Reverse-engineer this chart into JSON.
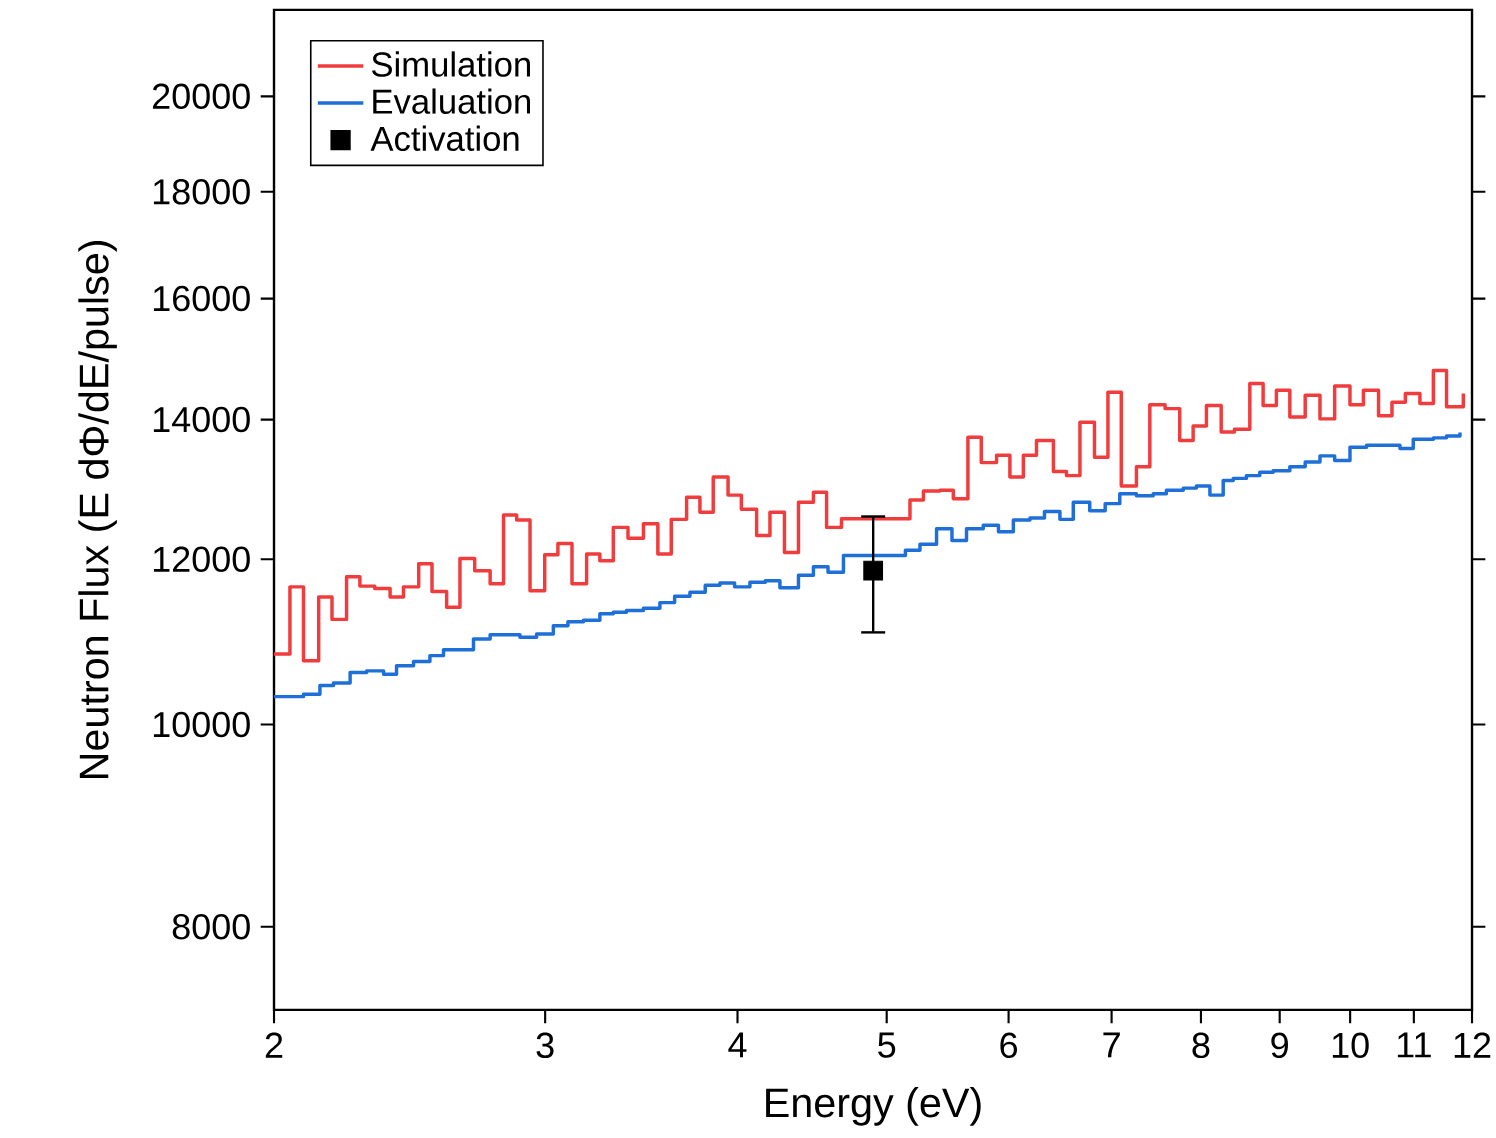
{
  "chart_data": {
    "type": "step",
    "xlabel": "Energy (eV)",
    "ylabel": "Neutron Flux (E dΦ/dE/pulse)",
    "log": "xy",
    "legend": "top left",
    "grid": false,
    "xlim": [
      2,
      12
    ],
    "xticks": [
      2,
      3,
      4,
      5,
      6,
      7,
      8,
      9,
      10,
      11,
      12
    ],
    "ylim": [
      7300,
      22000
    ],
    "yticks": [
      8000,
      10000,
      12000,
      14000,
      16000,
      18000,
      20000
    ],
    "series": [
      {
        "name": "Simulation",
        "color": "#f03c3c",
        "x": [
          2.0,
          2.048,
          2.09,
          2.138,
          2.181,
          2.229,
          2.274,
          2.325,
          2.379,
          2.427,
          2.483,
          2.533,
          2.589,
          2.641,
          2.7,
          2.763,
          2.819,
          2.875,
          2.933,
          2.998,
          3.058,
          3.123,
          3.192,
          3.256,
          3.322,
          3.396,
          3.475,
          3.551,
          3.623,
          3.707,
          3.782,
          3.858,
          3.944,
          4.023,
          4.116,
          4.199,
          4.291,
          4.382,
          4.481,
          4.57,
          4.673,
          5.177,
          5.282,
          5.415,
          5.524,
          5.646,
          5.76,
          5.893,
          6.012,
          6.134,
          6.256,
          6.416,
          6.543,
          6.676,
          6.823,
          6.961,
          7.102,
          7.265,
          7.412,
          7.584,
          7.751,
          7.908,
          8.066,
          8.246,
          8.411,
          8.607,
          8.78,
          8.956,
          9.138,
          9.35,
          9.559,
          9.771,
          9.998,
          10.2,
          10.434,
          10.646,
          10.861,
          11.1,
          11.326,
          11.551,
          11.845
        ],
        "values": [
          10810,
          11640,
          10730,
          11510,
          11230,
          11770,
          11650,
          11620,
          11510,
          11640,
          11940,
          11580,
          11380,
          12010,
          11850,
          11680,
          12600,
          12530,
          11590,
          12060,
          12210,
          11680,
          12070,
          11980,
          12430,
          12280,
          12480,
          12070,
          12540,
          12850,
          12640,
          13140,
          12880,
          12680,
          12320,
          12640,
          12090,
          12780,
          12920,
          12430,
          12550,
          12810,
          12940,
          12950,
          12830,
          13730,
          13350,
          13460,
          13140,
          13460,
          13680,
          13220,
          13160,
          13960,
          13430,
          14430,
          13010,
          13290,
          14230,
          14170,
          13680,
          13900,
          14220,
          13810,
          13850,
          14570,
          14220,
          14460,
          14040,
          14380,
          14010,
          14530,
          14230,
          14460,
          14060,
          14270,
          14410,
          14250,
          14780,
          14200,
          14410
        ]
      },
      {
        "name": "Evaluation",
        "color": "#1f6fd8",
        "x": [
          2.0,
          2.09,
          2.142,
          2.186,
          2.241,
          2.297,
          2.356,
          2.402,
          2.464,
          2.525,
          2.577,
          2.695,
          2.763,
          2.889,
          2.962,
          3.037,
          3.104,
          3.177,
          3.256,
          3.322,
          3.388,
          3.475,
          3.562,
          3.641,
          3.726,
          3.812,
          3.897,
          3.983,
          4.075,
          4.17,
          4.262,
          4.382,
          4.481,
          4.58,
          4.687,
          5.142,
          5.255,
          5.387,
          5.513,
          5.634,
          5.777,
          5.91,
          6.043,
          6.195,
          6.331,
          6.479,
          6.61,
          6.775,
          6.933,
          7.086,
          7.265,
          7.45,
          7.598,
          7.792,
          7.947,
          8.108,
          8.271,
          8.396,
          8.563,
          8.736,
          8.913,
          9.138,
          9.35,
          9.559,
          9.771,
          9.998,
          10.249,
          10.774,
          10.99,
          11.326,
          11.551,
          11.786
        ],
        "values": [
          10310,
          10340,
          10440,
          10470,
          10590,
          10610,
          10570,
          10670,
          10720,
          10790,
          10860,
          10990,
          11040,
          11010,
          11050,
          11150,
          11200,
          11220,
          11300,
          11320,
          11340,
          11370,
          11440,
          11520,
          11570,
          11660,
          11690,
          11640,
          11700,
          11720,
          11630,
          11790,
          11900,
          11830,
          12050,
          12120,
          12200,
          12410,
          12250,
          12410,
          12460,
          12370,
          12530,
          12560,
          12650,
          12540,
          12780,
          12660,
          12760,
          12900,
          12870,
          12900,
          12950,
          12980,
          13010,
          12880,
          13090,
          13120,
          13160,
          13210,
          13230,
          13290,
          13360,
          13450,
          13380,
          13580,
          13610,
          13560,
          13700,
          13720,
          13750,
          13800
        ]
      },
      {
        "name": "Activation",
        "type": "scatter",
        "color": "#000000",
        "marker": "square",
        "x": [
          4.9
        ],
        "values": [
          11850
        ],
        "errors": [
          [
            11070,
            12580
          ]
        ]
      }
    ]
  }
}
